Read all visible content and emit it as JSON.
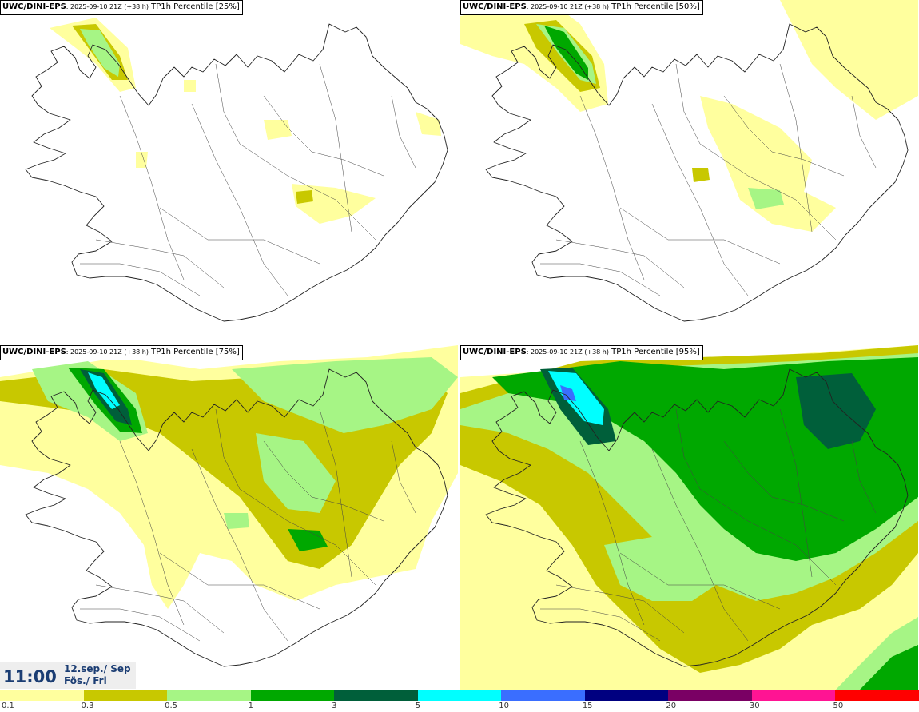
{
  "panels": [
    {
      "model": "UWC/DINI-EPS",
      "run": ": 2025-09-10 21Z (+38 h)",
      "param": " TP1h Percentile [25%]",
      "level": 1
    },
    {
      "model": "UWC/DINI-EPS",
      "run": ": 2025-09-10 21Z (+38 h)",
      "param": " TP1h Percentile [50%]",
      "level": 2
    },
    {
      "model": "UWC/DINI-EPS",
      "run": ": 2025-09-10 21Z (+38 h)",
      "param": " TP1h Percentile [75%]",
      "level": 3
    },
    {
      "model": "UWC/DINI-EPS",
      "run": ": 2025-09-10 21Z (+38 h)",
      "param": " TP1h Percentile [95%]",
      "level": 4
    }
  ],
  "valid_time": {
    "clock": "11:00",
    "date": "12.sep./ Sep",
    "day": "Fös./ Fri"
  },
  "legend": {
    "colors": [
      "#ffff9e",
      "#c8c800",
      "#a6f585",
      "#00a800",
      "#005f3a",
      "#00ffff",
      "#3a6eff",
      "#000080",
      "#7a0064",
      "#ff1493",
      "#ff0000"
    ],
    "labels": [
      "0.1",
      "0.3",
      "0.5",
      "1",
      "3",
      "5",
      "10",
      "15",
      "20",
      "30",
      "50"
    ]
  }
}
